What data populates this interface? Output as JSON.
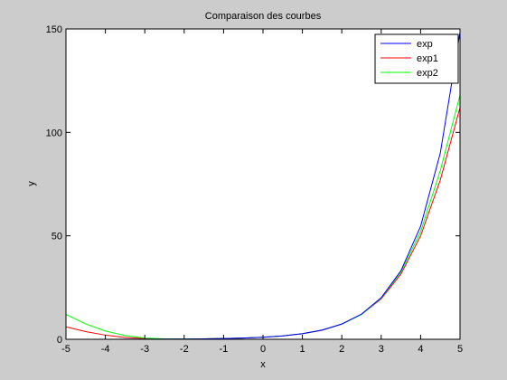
{
  "chart_data": {
    "type": "line",
    "title": "Comparaison des courbes",
    "xlabel": "x",
    "ylabel": "y",
    "xlim": [
      -5,
      5
    ],
    "ylim": [
      0,
      150
    ],
    "x_ticks": [
      -5,
      -4,
      -3,
      -2,
      -1,
      0,
      1,
      2,
      3,
      4,
      5
    ],
    "y_ticks": [
      0,
      50,
      100,
      150
    ],
    "grid": false,
    "legend_position": "top-right",
    "x": [
      -5,
      -4.5,
      -4,
      -3.5,
      -3,
      -2.5,
      -2,
      -1.5,
      -1,
      -0.5,
      0,
      0.5,
      1,
      1.5,
      2,
      2.5,
      3,
      3.5,
      4,
      4.5,
      5
    ],
    "series": [
      {
        "name": "exp",
        "color": "#0000ff",
        "values": [
          0.0067,
          0.0111,
          0.0183,
          0.0302,
          0.0498,
          0.0821,
          0.1353,
          0.2231,
          0.3679,
          0.6065,
          1.0,
          1.6487,
          2.7183,
          4.4817,
          7.3891,
          12.1825,
          20.0855,
          33.1155,
          54.5982,
          90.0171,
          148.4132
        ]
      },
      {
        "name": "exp1",
        "color": "#ff0000",
        "values": [
          6.0,
          3.7,
          2.0,
          0.9,
          0.3,
          0.15,
          0.12,
          0.2,
          0.37,
          0.6,
          1.0,
          1.6,
          2.6,
          4.3,
          7.3,
          12.0,
          19.5,
          31.5,
          50.0,
          77.0,
          112.0
        ]
      },
      {
        "name": "exp2",
        "color": "#00ff00",
        "values": [
          12.0,
          7.4,
          4.0,
          1.8,
          0.6,
          0.2,
          0.14,
          0.22,
          0.37,
          0.61,
          1.0,
          1.65,
          2.7,
          4.4,
          7.3,
          12.0,
          19.9,
          32.5,
          52.0,
          81.5,
          118.0
        ]
      }
    ]
  }
}
